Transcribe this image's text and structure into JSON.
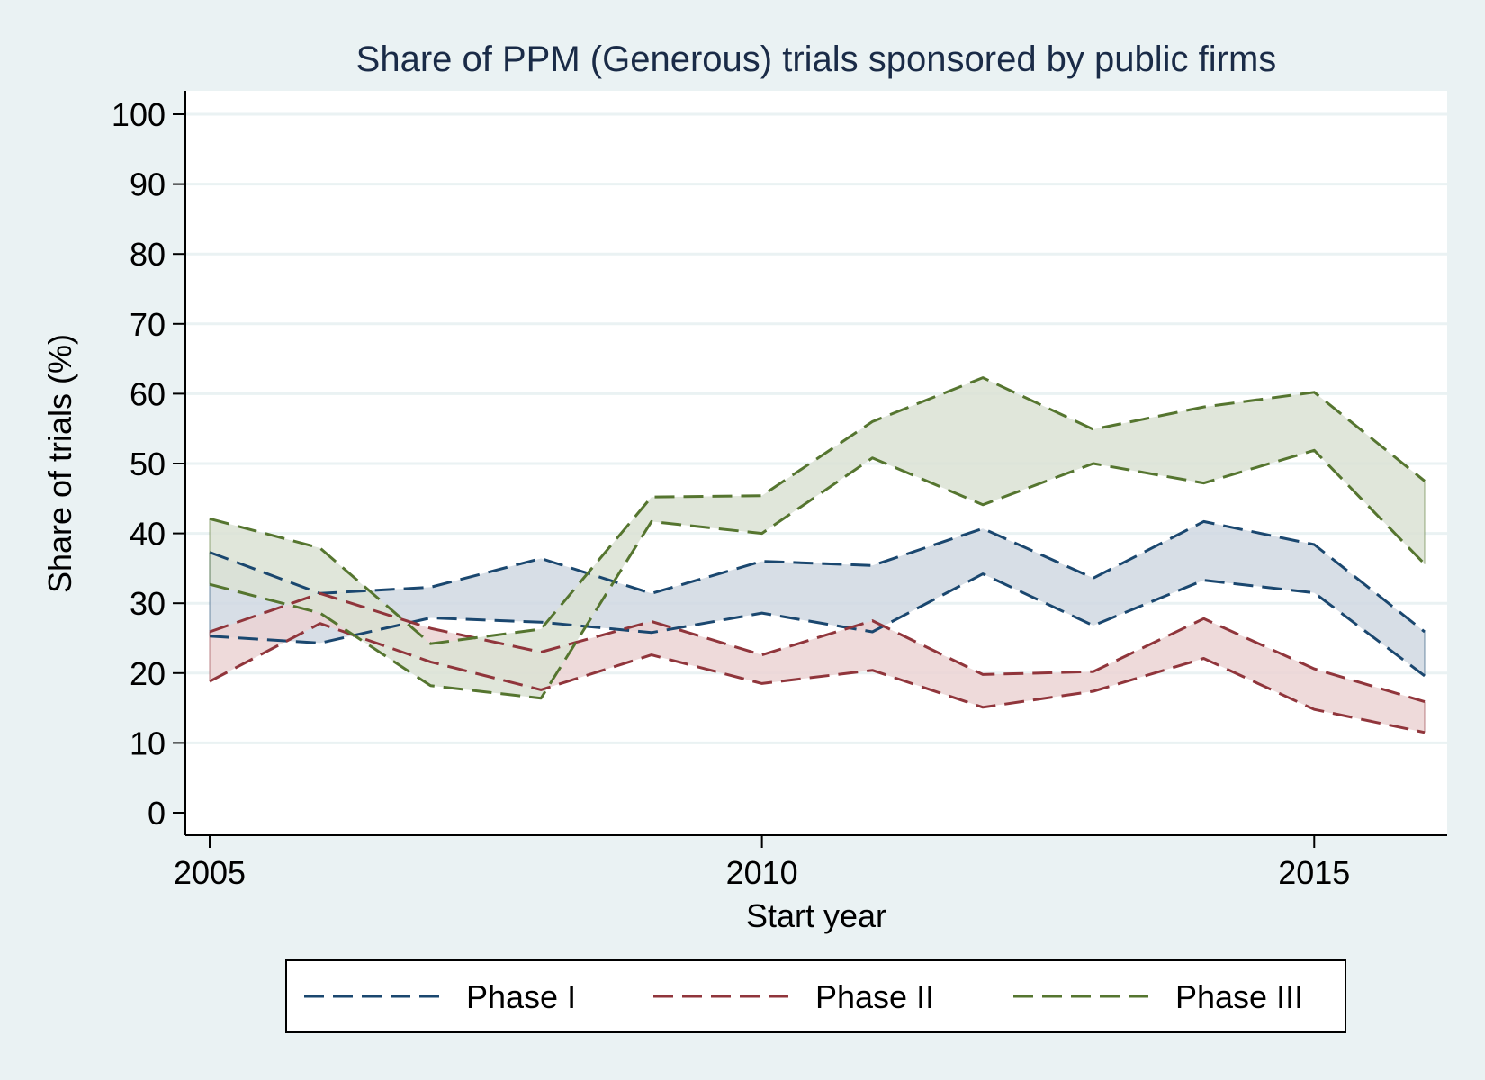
{
  "chart_data": {
    "type": "area",
    "title": "Share of PPM (Generous) trials sponsored by public firms",
    "xlabel": "Start year",
    "ylabel": "Share of trials (%)",
    "xlim": [
      2005,
      2016
    ],
    "ylim": [
      0,
      100
    ],
    "x_ticks": [
      2005,
      2010,
      2015
    ],
    "y_ticks": [
      0,
      10,
      20,
      30,
      40,
      50,
      60,
      70,
      80,
      90,
      100
    ],
    "grid": true,
    "legend_position": "bottom",
    "x": [
      2005,
      2006,
      2007,
      2008,
      2009,
      2010,
      2011,
      2012,
      2013,
      2014,
      2015,
      2016
    ],
    "series": [
      {
        "name": "Phase I",
        "color": "#1a476f",
        "fill": "#d0d8e2",
        "upper": [
          37.3,
          31.4,
          32.3,
          36.4,
          31.4,
          36.0,
          35.4,
          40.7,
          33.6,
          41.7,
          38.4,
          25.9
        ],
        "lower": [
          25.3,
          24.3,
          27.9,
          27.3,
          25.8,
          28.6,
          25.9,
          34.2,
          26.8,
          33.3,
          31.5,
          19.6
        ]
      },
      {
        "name": "Phase II",
        "color": "#90353b",
        "fill": "#ebd4d4",
        "upper": [
          25.9,
          31.4,
          26.4,
          23.0,
          27.4,
          22.6,
          27.5,
          19.8,
          20.2,
          27.8,
          20.6,
          15.9
        ],
        "lower": [
          18.8,
          27.1,
          21.6,
          17.6,
          22.6,
          18.5,
          20.4,
          15.1,
          17.4,
          22.1,
          14.8,
          11.5
        ]
      },
      {
        "name": "Phase III",
        "color": "#55752f",
        "fill": "#dbe2d3",
        "upper": [
          42.1,
          37.9,
          24.2,
          26.3,
          45.2,
          45.4,
          56.0,
          62.3,
          54.9,
          58.1,
          60.2,
          47.5
        ],
        "lower": [
          32.7,
          28.6,
          18.2,
          16.4,
          41.7,
          40.0,
          50.8,
          44.1,
          50.0,
          47.2,
          51.9,
          35.6
        ]
      }
    ]
  }
}
